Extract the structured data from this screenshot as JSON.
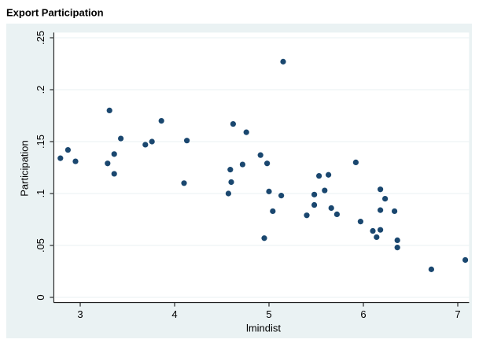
{
  "chart_data": {
    "type": "scatter",
    "title": "Export Participation",
    "xlabel": "lmindist",
    "ylabel": "Participation",
    "color": "#1a476f",
    "x": [
      2.79,
      2.87,
      2.95,
      3.29,
      3.31,
      3.36,
      3.36,
      3.43,
      3.69,
      3.76,
      3.86,
      4.1,
      4.13,
      4.57,
      4.59,
      4.6,
      4.62,
      4.72,
      4.76,
      4.91,
      4.95,
      4.98,
      5.0,
      5.04,
      5.13,
      5.15,
      5.4,
      5.48,
      5.48,
      5.53,
      5.59,
      5.63,
      5.66,
      5.72,
      5.92,
      5.97,
      6.1,
      6.14,
      6.18,
      6.18,
      6.18,
      6.23,
      6.33,
      6.36,
      6.36,
      6.72,
      7.08
    ],
    "values": [
      0.134,
      0.142,
      0.131,
      0.129,
      0.18,
      0.138,
      0.119,
      0.153,
      0.147,
      0.15,
      0.17,
      0.11,
      0.151,
      0.1,
      0.123,
      0.111,
      0.167,
      0.128,
      0.159,
      0.137,
      0.057,
      0.129,
      0.102,
      0.083,
      0.098,
      0.227,
      0.079,
      0.089,
      0.099,
      0.117,
      0.103,
      0.118,
      0.086,
      0.08,
      0.13,
      0.073,
      0.064,
      0.058,
      0.104,
      0.084,
      0.065,
      0.095,
      0.083,
      0.055,
      0.048,
      0.027,
      0.036
    ],
    "xlim": [
      2.72,
      7.12
    ],
    "ylim": [
      -0.005,
      0.255
    ],
    "xticks": [
      3,
      4,
      5,
      6,
      7
    ],
    "yticks": [
      0,
      {
        "value": 0.05,
        "label": ".05"
      },
      {
        "value": 0.1,
        "label": ".1"
      },
      {
        "value": 0.15,
        "label": ".15"
      },
      {
        "value": 0.2,
        "label": ".2"
      },
      {
        "value": 0.25,
        "label": ".25"
      }
    ]
  }
}
